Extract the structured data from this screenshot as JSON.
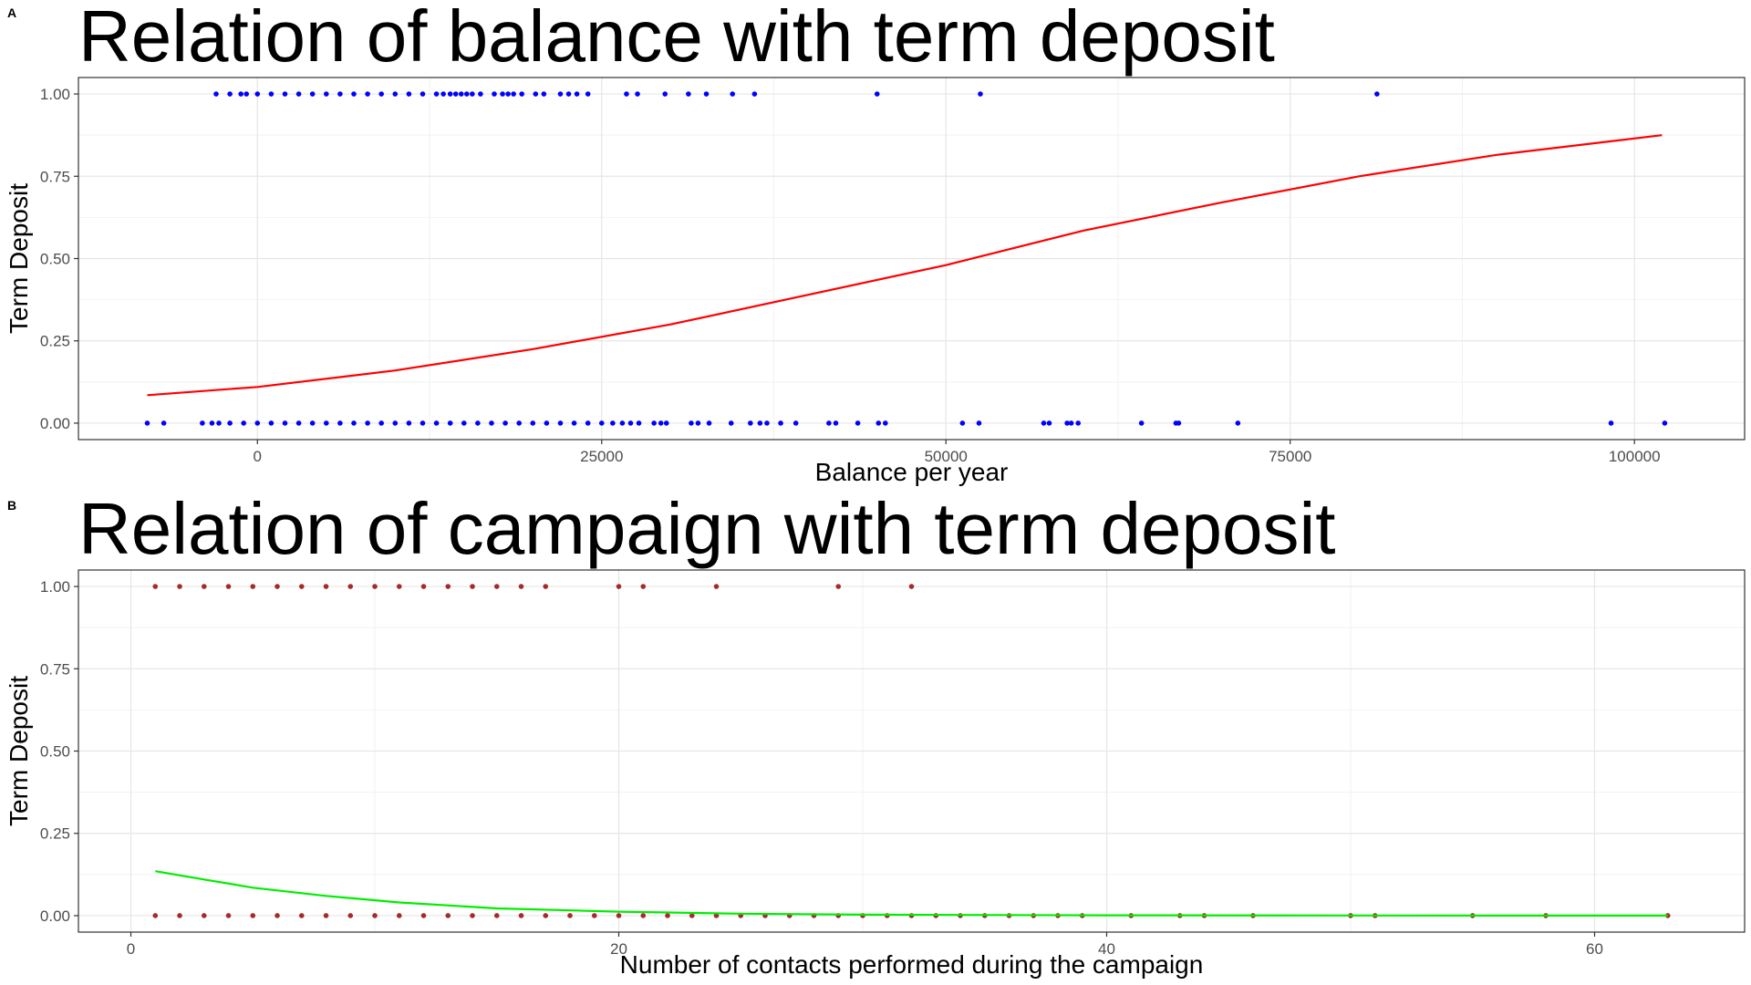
{
  "chart_data": [
    {
      "panel_label": "A",
      "type": "scatter",
      "title": "Relation of balance with term deposit",
      "xlabel": "Balance per year",
      "ylabel": "Term Deposit",
      "xlim": [
        -13000,
        108000
      ],
      "ylim": [
        -0.05,
        1.05
      ],
      "xticks": [
        0,
        25000,
        50000,
        75000,
        100000
      ],
      "xtick_labels": [
        "0",
        "25000",
        "50000",
        "75000",
        "100000"
      ],
      "yticks": [
        0,
        0.25,
        0.5,
        0.75,
        1
      ],
      "ytick_labels": [
        "0.00",
        "0.25",
        "0.50",
        "0.75",
        "1.00"
      ],
      "grid": true,
      "legend": "none",
      "point_color": "#0000ff",
      "line_color": "#ff0000",
      "points": [
        {
          "x": -3000,
          "y": 1
        },
        {
          "x": -2000,
          "y": 1
        },
        {
          "x": -1200,
          "y": 1
        },
        {
          "x": -800,
          "y": 1
        },
        {
          "x": 0,
          "y": 1
        },
        {
          "x": 1000,
          "y": 1
        },
        {
          "x": 2000,
          "y": 1
        },
        {
          "x": 3000,
          "y": 1
        },
        {
          "x": 4000,
          "y": 1
        },
        {
          "x": 5000,
          "y": 1
        },
        {
          "x": 6000,
          "y": 1
        },
        {
          "x": 7000,
          "y": 1
        },
        {
          "x": 8000,
          "y": 1
        },
        {
          "x": 9000,
          "y": 1
        },
        {
          "x": 10000,
          "y": 1
        },
        {
          "x": 11000,
          "y": 1
        },
        {
          "x": 12000,
          "y": 1
        },
        {
          "x": 13000,
          "y": 1
        },
        {
          "x": 13500,
          "y": 1
        },
        {
          "x": 14000,
          "y": 1
        },
        {
          "x": 14400,
          "y": 1
        },
        {
          "x": 14800,
          "y": 1
        },
        {
          "x": 15200,
          "y": 1
        },
        {
          "x": 15600,
          "y": 1
        },
        {
          "x": 16200,
          "y": 1
        },
        {
          "x": 17200,
          "y": 1
        },
        {
          "x": 17800,
          "y": 1
        },
        {
          "x": 18200,
          "y": 1
        },
        {
          "x": 18600,
          "y": 1
        },
        {
          "x": 19200,
          "y": 1
        },
        {
          "x": 20200,
          "y": 1
        },
        {
          "x": 20800,
          "y": 1
        },
        {
          "x": 22000,
          "y": 1
        },
        {
          "x": 22600,
          "y": 1
        },
        {
          "x": 23200,
          "y": 1
        },
        {
          "x": 24000,
          "y": 1
        },
        {
          "x": 26800,
          "y": 1
        },
        {
          "x": 27600,
          "y": 1
        },
        {
          "x": 29600,
          "y": 1
        },
        {
          "x": 31300,
          "y": 1
        },
        {
          "x": 32600,
          "y": 1
        },
        {
          "x": 34500,
          "y": 1
        },
        {
          "x": 36100,
          "y": 1
        },
        {
          "x": 45000,
          "y": 1
        },
        {
          "x": 52500,
          "y": 1
        },
        {
          "x": 81300,
          "y": 1
        },
        {
          "x": -8000,
          "y": 0
        },
        {
          "x": -6800,
          "y": 0
        },
        {
          "x": -4000,
          "y": 0
        },
        {
          "x": -3300,
          "y": 0
        },
        {
          "x": -2800,
          "y": 0
        },
        {
          "x": -2000,
          "y": 0
        },
        {
          "x": -1000,
          "y": 0
        },
        {
          "x": 0,
          "y": 0
        },
        {
          "x": 1000,
          "y": 0
        },
        {
          "x": 2000,
          "y": 0
        },
        {
          "x": 3000,
          "y": 0
        },
        {
          "x": 4000,
          "y": 0
        },
        {
          "x": 5000,
          "y": 0
        },
        {
          "x": 6000,
          "y": 0
        },
        {
          "x": 7000,
          "y": 0
        },
        {
          "x": 8000,
          "y": 0
        },
        {
          "x": 9000,
          "y": 0
        },
        {
          "x": 10000,
          "y": 0
        },
        {
          "x": 11000,
          "y": 0
        },
        {
          "x": 12000,
          "y": 0
        },
        {
          "x": 13000,
          "y": 0
        },
        {
          "x": 14000,
          "y": 0
        },
        {
          "x": 15000,
          "y": 0
        },
        {
          "x": 16000,
          "y": 0
        },
        {
          "x": 17000,
          "y": 0
        },
        {
          "x": 18000,
          "y": 0
        },
        {
          "x": 19000,
          "y": 0
        },
        {
          "x": 20000,
          "y": 0
        },
        {
          "x": 21000,
          "y": 0
        },
        {
          "x": 22000,
          "y": 0
        },
        {
          "x": 23000,
          "y": 0
        },
        {
          "x": 24000,
          "y": 0
        },
        {
          "x": 25000,
          "y": 0
        },
        {
          "x": 25800,
          "y": 0
        },
        {
          "x": 26500,
          "y": 0
        },
        {
          "x": 27100,
          "y": 0
        },
        {
          "x": 27700,
          "y": 0
        },
        {
          "x": 28800,
          "y": 0
        },
        {
          "x": 29300,
          "y": 0
        },
        {
          "x": 29700,
          "y": 0
        },
        {
          "x": 31500,
          "y": 0
        },
        {
          "x": 32000,
          "y": 0
        },
        {
          "x": 32800,
          "y": 0
        },
        {
          "x": 34400,
          "y": 0
        },
        {
          "x": 35800,
          "y": 0
        },
        {
          "x": 36500,
          "y": 0
        },
        {
          "x": 37000,
          "y": 0
        },
        {
          "x": 38000,
          "y": 0
        },
        {
          "x": 39100,
          "y": 0
        },
        {
          "x": 41500,
          "y": 0
        },
        {
          "x": 42000,
          "y": 0
        },
        {
          "x": 43600,
          "y": 0
        },
        {
          "x": 45100,
          "y": 0
        },
        {
          "x": 45600,
          "y": 0
        },
        {
          "x": 51200,
          "y": 0
        },
        {
          "x": 52400,
          "y": 0
        },
        {
          "x": 57100,
          "y": 0
        },
        {
          "x": 57500,
          "y": 0
        },
        {
          "x": 58800,
          "y": 0
        },
        {
          "x": 59100,
          "y": 0
        },
        {
          "x": 59600,
          "y": 0
        },
        {
          "x": 64200,
          "y": 0
        },
        {
          "x": 66700,
          "y": 0
        },
        {
          "x": 66900,
          "y": 0
        },
        {
          "x": 71200,
          "y": 0
        },
        {
          "x": 98300,
          "y": 0
        },
        {
          "x": 102200,
          "y": 0
        }
      ],
      "curve": [
        {
          "x": -8000,
          "y": 0.085
        },
        {
          "x": 0,
          "y": 0.11
        },
        {
          "x": 10000,
          "y": 0.16
        },
        {
          "x": 20000,
          "y": 0.225
        },
        {
          "x": 30000,
          "y": 0.3
        },
        {
          "x": 40000,
          "y": 0.39
        },
        {
          "x": 50000,
          "y": 0.48
        },
        {
          "x": 60000,
          "y": 0.585
        },
        {
          "x": 70000,
          "y": 0.67
        },
        {
          "x": 80000,
          "y": 0.75
        },
        {
          "x": 90000,
          "y": 0.815
        },
        {
          "x": 102000,
          "y": 0.875
        }
      ]
    },
    {
      "panel_label": "B",
      "type": "scatter",
      "title": "Relation of campaign with term deposit",
      "xlabel": "Number of contacts performed during the campaign",
      "ylabel": "Term Deposit",
      "xlim": [
        -2.15,
        66.15
      ],
      "ylim": [
        -0.05,
        1.05
      ],
      "xticks": [
        0,
        20,
        40,
        60
      ],
      "xtick_labels": [
        "0",
        "20",
        "40",
        "60"
      ],
      "yticks": [
        0,
        0.25,
        0.5,
        0.75,
        1
      ],
      "ytick_labels": [
        "0.00",
        "0.25",
        "0.50",
        "0.75",
        "1.00"
      ],
      "grid": true,
      "legend": "none",
      "point_color": "#a52a2a",
      "line_color": "#00ee00",
      "points": [
        {
          "x": 1,
          "y": 1
        },
        {
          "x": 2,
          "y": 1
        },
        {
          "x": 3,
          "y": 1
        },
        {
          "x": 4,
          "y": 1
        },
        {
          "x": 5,
          "y": 1
        },
        {
          "x": 6,
          "y": 1
        },
        {
          "x": 7,
          "y": 1
        },
        {
          "x": 8,
          "y": 1
        },
        {
          "x": 9,
          "y": 1
        },
        {
          "x": 10,
          "y": 1
        },
        {
          "x": 11,
          "y": 1
        },
        {
          "x": 12,
          "y": 1
        },
        {
          "x": 13,
          "y": 1
        },
        {
          "x": 14,
          "y": 1
        },
        {
          "x": 15,
          "y": 1
        },
        {
          "x": 16,
          "y": 1
        },
        {
          "x": 17,
          "y": 1
        },
        {
          "x": 20,
          "y": 1
        },
        {
          "x": 21,
          "y": 1
        },
        {
          "x": 24,
          "y": 1
        },
        {
          "x": 29,
          "y": 1
        },
        {
          "x": 32,
          "y": 1
        },
        {
          "x": 1,
          "y": 0
        },
        {
          "x": 2,
          "y": 0
        },
        {
          "x": 3,
          "y": 0
        },
        {
          "x": 4,
          "y": 0
        },
        {
          "x": 5,
          "y": 0
        },
        {
          "x": 6,
          "y": 0
        },
        {
          "x": 7,
          "y": 0
        },
        {
          "x": 8,
          "y": 0
        },
        {
          "x": 9,
          "y": 0
        },
        {
          "x": 10,
          "y": 0
        },
        {
          "x": 11,
          "y": 0
        },
        {
          "x": 12,
          "y": 0
        },
        {
          "x": 13,
          "y": 0
        },
        {
          "x": 14,
          "y": 0
        },
        {
          "x": 15,
          "y": 0
        },
        {
          "x": 16,
          "y": 0
        },
        {
          "x": 17,
          "y": 0
        },
        {
          "x": 18,
          "y": 0
        },
        {
          "x": 19,
          "y": 0
        },
        {
          "x": 20,
          "y": 0
        },
        {
          "x": 21,
          "y": 0
        },
        {
          "x": 22,
          "y": 0
        },
        {
          "x": 23,
          "y": 0
        },
        {
          "x": 24,
          "y": 0
        },
        {
          "x": 25,
          "y": 0
        },
        {
          "x": 26,
          "y": 0
        },
        {
          "x": 27,
          "y": 0
        },
        {
          "x": 28,
          "y": 0
        },
        {
          "x": 29,
          "y": 0
        },
        {
          "x": 30,
          "y": 0
        },
        {
          "x": 31,
          "y": 0
        },
        {
          "x": 32,
          "y": 0
        },
        {
          "x": 33,
          "y": 0
        },
        {
          "x": 34,
          "y": 0
        },
        {
          "x": 35,
          "y": 0
        },
        {
          "x": 36,
          "y": 0
        },
        {
          "x": 37,
          "y": 0
        },
        {
          "x": 38,
          "y": 0
        },
        {
          "x": 39,
          "y": 0
        },
        {
          "x": 41,
          "y": 0
        },
        {
          "x": 43,
          "y": 0
        },
        {
          "x": 44,
          "y": 0
        },
        {
          "x": 46,
          "y": 0
        },
        {
          "x": 50,
          "y": 0
        },
        {
          "x": 51,
          "y": 0
        },
        {
          "x": 55,
          "y": 0
        },
        {
          "x": 58,
          "y": 0
        },
        {
          "x": 63,
          "y": 0
        }
      ],
      "curve": [
        {
          "x": 1,
          "y": 0.135
        },
        {
          "x": 3,
          "y": 0.11
        },
        {
          "x": 5,
          "y": 0.085
        },
        {
          "x": 8,
          "y": 0.06
        },
        {
          "x": 11,
          "y": 0.04
        },
        {
          "x": 15,
          "y": 0.022
        },
        {
          "x": 20,
          "y": 0.012
        },
        {
          "x": 25,
          "y": 0.006
        },
        {
          "x": 30,
          "y": 0.003
        },
        {
          "x": 40,
          "y": 0.001
        },
        {
          "x": 50,
          "y": 0.0003
        },
        {
          "x": 63,
          "y": 0.0001
        }
      ]
    }
  ]
}
